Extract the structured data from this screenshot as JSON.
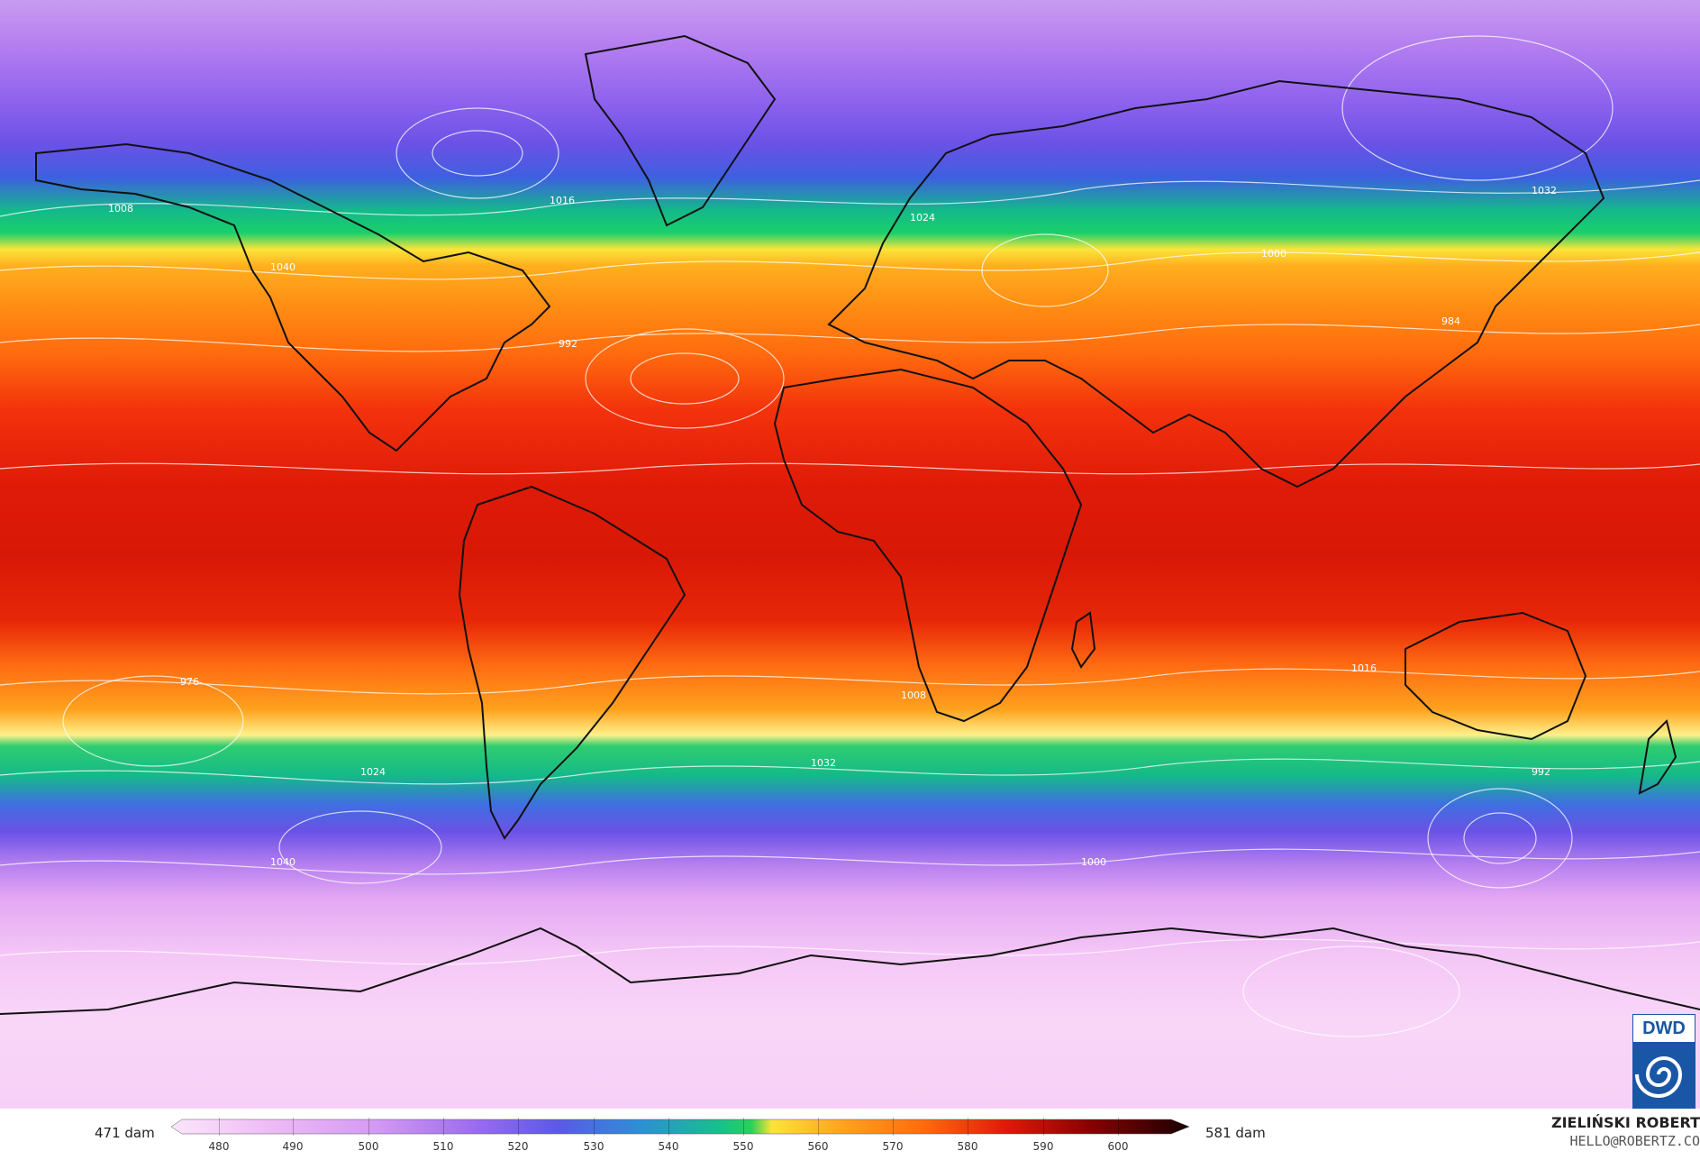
{
  "map": {
    "variable_scale_min_label": "471 dam",
    "variable_scale_max_label": "581 dam",
    "colorbar_ticks": [
      "480",
      "490",
      "500",
      "510",
      "520",
      "530",
      "540",
      "550",
      "560",
      "570",
      "580",
      "590",
      "600"
    ],
    "isobar_labels": [
      "1008",
      "1016",
      "1024",
      "1032",
      "1040",
      "1000",
      "992",
      "984",
      "976"
    ],
    "colors": {
      "cold": "#f7d0f7",
      "purple": "#8f63ee",
      "blue": "#3e5fe0",
      "green": "#19d06a",
      "yellow": "#fbe43a",
      "orange": "#ff8a12",
      "red": "#df1a08",
      "darkred": "#6b0000",
      "coastline": "#111111",
      "isobar": "#ffffff"
    }
  },
  "credit": {
    "name": "ZIELIŃSKI ROBERT",
    "email": "HELLO@ROBERTZ.CO"
  },
  "logo": {
    "text": "DWD"
  }
}
